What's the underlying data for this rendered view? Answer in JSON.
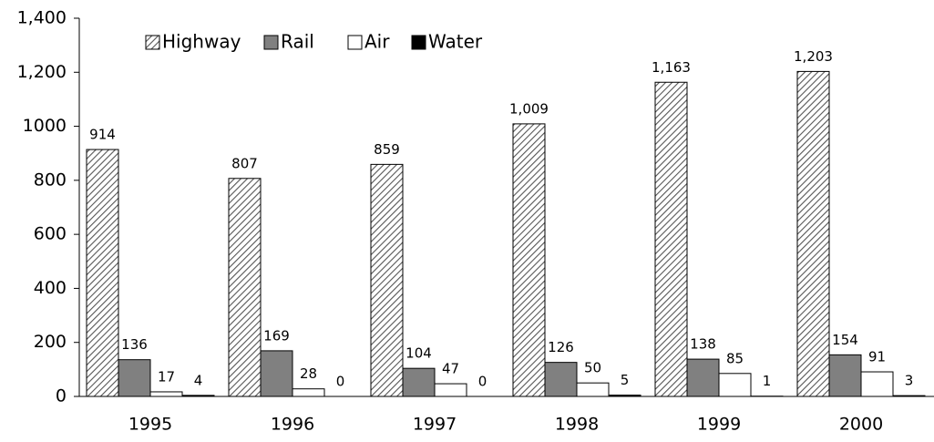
{
  "chart_data": {
    "type": "bar",
    "categories": [
      "1995",
      "1996",
      "1997",
      "1998",
      "1999",
      "2000"
    ],
    "series": [
      {
        "name": "Highway",
        "color": "hatch",
        "values": [
          914,
          807,
          859,
          1009,
          1163,
          1203
        ],
        "value_labels": [
          "914",
          "807",
          "859",
          "1,009",
          "1,163",
          "1,203"
        ]
      },
      {
        "name": "Rail",
        "color": "#808080",
        "values": [
          136,
          169,
          104,
          126,
          138,
          154
        ]
      },
      {
        "name": "Air",
        "color": "#ffffff",
        "values": [
          17,
          28,
          47,
          50,
          85,
          91
        ]
      },
      {
        "name": "Water",
        "color": "#000000",
        "values": [
          4,
          0,
          0,
          5,
          1,
          3
        ]
      }
    ],
    "ylim": [
      0,
      1400
    ],
    "yticks": [
      0,
      200,
      400,
      600,
      800,
      1000,
      {
        "value": 1200,
        "label": "1,200"
      },
      {
        "value": 1400,
        "label": "1,400"
      }
    ],
    "legend": "top-left"
  }
}
